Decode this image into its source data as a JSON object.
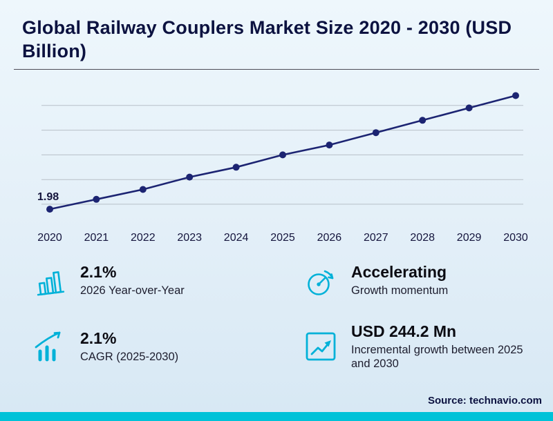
{
  "title": "Global Railway Couplers Market Size 2020 - 2030 (USD Billion)",
  "chart_data": {
    "type": "line",
    "title": "Global Railway Couplers Market Size 2020 - 2030 (USD Billion)",
    "x": [
      "2020",
      "2021",
      "2022",
      "2023",
      "2024",
      "2025",
      "2026",
      "2027",
      "2028",
      "2029",
      "2030"
    ],
    "values": [
      1.98,
      2.02,
      2.06,
      2.11,
      2.15,
      2.2,
      2.24,
      2.29,
      2.34,
      2.39,
      2.44
    ],
    "first_value_label": "1.98",
    "ylim": [
      1.93,
      2.5
    ],
    "gridlines": [
      2.0,
      2.1,
      2.2,
      2.3,
      2.4
    ],
    "grid": true,
    "legend": "none",
    "line_color": "#1c2472",
    "grid_color": "#b7bfc8",
    "label_color": "#14143c",
    "xlabel": "",
    "ylabel": ""
  },
  "stats": [
    {
      "icon": "bar-chart-icon",
      "value": "2.1%",
      "label": "2026 Year-over-Year"
    },
    {
      "icon": "speedometer-icon",
      "value": "Accelerating",
      "label": "Growth momentum"
    },
    {
      "icon": "growth-bars-icon",
      "value": "2.1%",
      "label": "CAGR (2025-2030)"
    },
    {
      "icon": "chart-growth-icon",
      "value": "USD 244.2 Mn",
      "label": "Incremental growth between 2025 and 2030"
    }
  ],
  "footer": {
    "source": "Source: technavio.com"
  },
  "colors": {
    "accent": "#00b1d8",
    "strip": "#00c2d8",
    "line": "#1c2472",
    "title_text": "#0c1240",
    "background_top": "#eef7fc",
    "background_bottom": "#d7e8f4"
  }
}
